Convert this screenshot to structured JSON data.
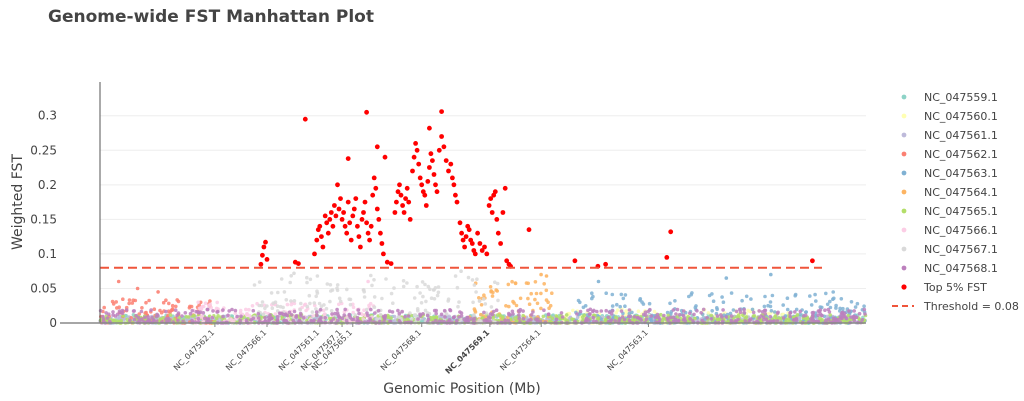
{
  "chart_data": {
    "type": "scatter",
    "title": "Genome-wide FST Manhattan Plot",
    "xlabel": "Genomic Position (Mb)",
    "ylabel": "Weighted FST",
    "ylim": [
      0,
      0.33
    ],
    "yticks": [
      0,
      0.05,
      0.1,
      0.15,
      0.2,
      0.25,
      0.3
    ],
    "ytick_labels": [
      "0",
      "0.05",
      "0.1",
      "0.15",
      "0.2",
      "0.25",
      "0.3"
    ],
    "xrange": [
      0,
      1000
    ],
    "grid": true,
    "legend_position": "right",
    "xticks": [
      {
        "label": "NC_047562.1",
        "x": 150,
        "bold": false
      },
      {
        "label": "NC_047566.1",
        "x": 218,
        "bold": false
      },
      {
        "label": "NC_047561.1",
        "x": 287,
        "bold": false
      },
      {
        "label": "NC_047567.1",
        "x": 316,
        "bold": false
      },
      {
        "label": "NC_047565.1",
        "x": 330,
        "bold": false
      },
      {
        "label": "NC_047568.1",
        "x": 420,
        "bold": false
      },
      {
        "label": "NC_047569.1",
        "x": 509,
        "bold": true
      },
      {
        "label": "NC_047564.1",
        "x": 576,
        "bold": false
      },
      {
        "label": "NC_047563.1",
        "x": 716,
        "bold": false
      }
    ],
    "series": [
      {
        "name": "NC_047559.1",
        "color": "#8dd3c7",
        "x_range": [
          0,
          1000
        ],
        "base_max": 0.012,
        "spikes": []
      },
      {
        "name": "NC_047560.1",
        "color": "#ffffb3",
        "x_range": [
          600,
          900
        ],
        "base_max": 0.02,
        "spikes": []
      },
      {
        "name": "NC_047561.1",
        "color": "#bebada",
        "x_range": [
          0,
          1000
        ],
        "base_max": 0.01,
        "spikes": []
      },
      {
        "name": "NC_047562.1",
        "color": "#fb8072",
        "x_range": [
          0,
          150
        ],
        "base_max": 0.035,
        "spikes": [
          0.06,
          0.045,
          0.05
        ]
      },
      {
        "name": "NC_047563.1",
        "color": "#80b1d3",
        "x_range": [
          620,
          1000
        ],
        "base_max": 0.045,
        "spikes": [
          0.07,
          0.06,
          0.065
        ]
      },
      {
        "name": "NC_047564.1",
        "color": "#fdb462",
        "x_range": [
          480,
          590
        ],
        "base_max": 0.06,
        "spikes": [
          0.07,
          0.068
        ]
      },
      {
        "name": "NC_047565.1",
        "color": "#b3de69",
        "x_range": [
          0,
          1000
        ],
        "base_max": 0.012,
        "spikes": []
      },
      {
        "name": "NC_047566.1",
        "color": "#fccde5",
        "x_range": [
          120,
          360
        ],
        "base_max": 0.03,
        "spikes": [
          0.06
        ]
      },
      {
        "name": "NC_047567.1",
        "color": "#d9d9d9",
        "x_range": [
          200,
          520
        ],
        "base_max": 0.07,
        "spikes": [
          0.075,
          0.072
        ]
      },
      {
        "name": "NC_047568.1",
        "color": "#bc80bd",
        "x_range": [
          0,
          1000
        ],
        "base_max": 0.02,
        "spikes": []
      }
    ],
    "top5": {
      "name": "Top 5% FST",
      "color": "#ff0000",
      "points": [
        [
          210,
          0.085
        ],
        [
          212,
          0.098
        ],
        [
          214,
          0.11
        ],
        [
          216,
          0.117
        ],
        [
          218,
          0.092
        ],
        [
          255,
          0.088
        ],
        [
          259,
          0.086
        ],
        [
          280,
          0.1
        ],
        [
          283,
          0.12
        ],
        [
          285,
          0.135
        ],
        [
          287,
          0.14
        ],
        [
          289,
          0.125
        ],
        [
          291,
          0.11
        ],
        [
          294,
          0.155
        ],
        [
          296,
          0.145
        ],
        [
          298,
          0.13
        ],
        [
          300,
          0.15
        ],
        [
          302,
          0.16
        ],
        [
          304,
          0.14
        ],
        [
          306,
          0.17
        ],
        [
          308,
          0.155
        ],
        [
          310,
          0.2
        ],
        [
          312,
          0.165
        ],
        [
          314,
          0.18
        ],
        [
          316,
          0.15
        ],
        [
          318,
          0.16
        ],
        [
          320,
          0.14
        ],
        [
          322,
          0.13
        ],
        [
          324,
          0.175
        ],
        [
          326,
          0.145
        ],
        [
          328,
          0.12
        ],
        [
          330,
          0.155
        ],
        [
          332,
          0.165
        ],
        [
          334,
          0.18
        ],
        [
          336,
          0.14
        ],
        [
          338,
          0.125
        ],
        [
          340,
          0.11
        ],
        [
          342,
          0.15
        ],
        [
          344,
          0.16
        ],
        [
          346,
          0.175
        ],
        [
          348,
          0.145
        ],
        [
          350,
          0.13
        ],
        [
          352,
          0.12
        ],
        [
          354,
          0.14
        ],
        [
          356,
          0.185
        ],
        [
          358,
          0.21
        ],
        [
          360,
          0.195
        ],
        [
          362,
          0.165
        ],
        [
          364,
          0.15
        ],
        [
          366,
          0.13
        ],
        [
          368,
          0.115
        ],
        [
          370,
          0.1
        ],
        [
          375,
          0.088
        ],
        [
          380,
          0.086
        ],
        [
          385,
          0.16
        ],
        [
          387,
          0.175
        ],
        [
          389,
          0.19
        ],
        [
          391,
          0.2
        ],
        [
          393,
          0.185
        ],
        [
          395,
          0.17
        ],
        [
          397,
          0.16
        ],
        [
          399,
          0.18
        ],
        [
          401,
          0.195
        ],
        [
          403,
          0.175
        ],
        [
          405,
          0.15
        ],
        [
          408,
          0.22
        ],
        [
          410,
          0.24
        ],
        [
          412,
          0.26
        ],
        [
          414,
          0.25
        ],
        [
          416,
          0.23
        ],
        [
          418,
          0.21
        ],
        [
          420,
          0.2
        ],
        [
          422,
          0.19
        ],
        [
          424,
          0.185
        ],
        [
          426,
          0.17
        ],
        [
          428,
          0.205
        ],
        [
          430,
          0.225
        ],
        [
          432,
          0.245
        ],
        [
          434,
          0.235
        ],
        [
          436,
          0.215
        ],
        [
          438,
          0.2
        ],
        [
          440,
          0.19
        ],
        [
          443,
          0.25
        ],
        [
          446,
          0.27
        ],
        [
          449,
          0.255
        ],
        [
          452,
          0.235
        ],
        [
          455,
          0.22
        ],
        [
          458,
          0.23
        ],
        [
          460,
          0.21
        ],
        [
          462,
          0.2
        ],
        [
          464,
          0.185
        ],
        [
          466,
          0.175
        ],
        [
          470,
          0.145
        ],
        [
          472,
          0.13
        ],
        [
          474,
          0.12
        ],
        [
          476,
          0.11
        ],
        [
          478,
          0.125
        ],
        [
          480,
          0.14
        ],
        [
          482,
          0.135
        ],
        [
          484,
          0.12
        ],
        [
          486,
          0.115
        ],
        [
          488,
          0.105
        ],
        [
          490,
          0.1
        ],
        [
          493,
          0.13
        ],
        [
          496,
          0.115
        ],
        [
          499,
          0.105
        ],
        [
          502,
          0.11
        ],
        [
          505,
          0.1
        ],
        [
          508,
          0.17
        ],
        [
          510,
          0.18
        ],
        [
          512,
          0.16
        ],
        [
          514,
          0.185
        ],
        [
          516,
          0.19
        ],
        [
          518,
          0.15
        ],
        [
          520,
          0.13
        ],
        [
          523,
          0.115
        ],
        [
          526,
          0.16
        ],
        [
          529,
          0.195
        ],
        [
          531,
          0.09
        ],
        [
          534,
          0.085
        ],
        [
          536,
          0.082
        ],
        [
          268,
          0.295
        ],
        [
          348,
          0.305
        ],
        [
          324,
          0.238
        ],
        [
          362,
          0.255
        ],
        [
          372,
          0.24
        ],
        [
          446,
          0.306
        ],
        [
          430,
          0.282
        ],
        [
          560,
          0.135
        ],
        [
          620,
          0.09
        ],
        [
          650,
          0.082
        ],
        [
          660,
          0.085
        ],
        [
          740,
          0.095
        ],
        [
          745,
          0.132
        ],
        [
          930,
          0.09
        ]
      ]
    },
    "threshold": {
      "name": "Threshold = 0.08",
      "value": 0.08,
      "color": "#ef553b"
    }
  }
}
